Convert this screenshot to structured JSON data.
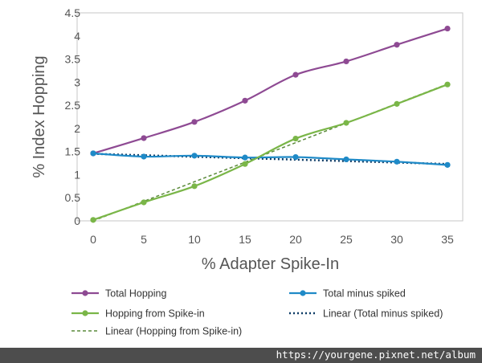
{
  "chart_data": {
    "type": "line",
    "xlabel": "% Adapter Spike-In",
    "ylabel": "% Index Hopping",
    "x": [
      0,
      5,
      10,
      15,
      20,
      25,
      30,
      35
    ],
    "xticks": [
      "0",
      "5",
      "10",
      "15",
      "20",
      "25",
      "30",
      "35"
    ],
    "yticks": [
      "0",
      "0.5",
      "1",
      "1.5",
      "2",
      "2.5",
      "3",
      "3.5",
      "4",
      "4.5"
    ],
    "xlim": [
      0,
      35
    ],
    "ylim": [
      0,
      4.5
    ],
    "grid": false,
    "legend_position": "bottom",
    "series": [
      {
        "name": "Total Hopping",
        "color": "#8e4a93",
        "style": "line-marker",
        "values": [
          1.46,
          1.79,
          2.14,
          2.6,
          3.16,
          3.45,
          3.81,
          4.16
        ]
      },
      {
        "name": "Total minus spiked",
        "color": "#1f8ac7",
        "style": "line-marker",
        "values": [
          1.46,
          1.39,
          1.41,
          1.37,
          1.38,
          1.33,
          1.28,
          1.21
        ]
      },
      {
        "name": "Hopping from Spike-in",
        "color": "#7ab648",
        "style": "line-marker",
        "values": [
          0.02,
          0.4,
          0.75,
          1.23,
          1.78,
          2.12,
          2.53,
          2.95
        ]
      }
    ],
    "trendlines": [
      {
        "name": "Linear (Total minus spiked)",
        "color": "#0d3b66",
        "style": "dotted",
        "x": [
          0,
          35
        ],
        "values": [
          1.45,
          1.23
        ]
      },
      {
        "name": "Linear (Hopping from Spike-in)",
        "color": "#5a8a3a",
        "style": "dashed",
        "x": [
          0,
          35
        ],
        "values": [
          0.0,
          2.96
        ]
      }
    ],
    "legend": [
      {
        "label": "Total Hopping",
        "color": "#8e4a93",
        "style": "line-marker"
      },
      {
        "label": "Total minus spiked",
        "color": "#1f8ac7",
        "style": "line-marker"
      },
      {
        "label": "Hopping from Spike-in",
        "color": "#7ab648",
        "style": "line-marker"
      },
      {
        "label": "Linear (Total minus spiked)",
        "color": "#0d3b66",
        "style": "dotted"
      },
      {
        "label": "Linear (Hopping from Spike-in)",
        "color": "#5a8a3a",
        "style": "dashed"
      }
    ]
  },
  "watermark": "https://yourgene.pixnet.net/album"
}
